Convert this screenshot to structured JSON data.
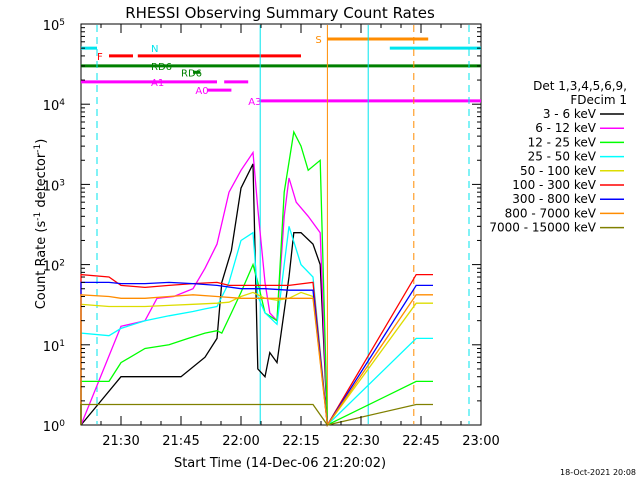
{
  "chart_data": {
    "type": "line",
    "title": "RHESSI Observing Summary Count Rates",
    "xlabel": "Start Time (14-Dec-06 21:20:02)",
    "ylabel_main": "Count Rate (s",
    "ylabel_sup1": "-1",
    "ylabel_mid": " detector",
    "ylabel_sup2": "-1",
    "ylabel_end": ")",
    "y_scale": "log",
    "ylim": [
      1,
      100000
    ],
    "xlim": [
      "21:20",
      "23:00"
    ],
    "x_ticks": [
      "21:30",
      "21:45",
      "22:00",
      "22:15",
      "22:30",
      "22:45",
      "23:00"
    ],
    "y_ticks": [
      {
        "value": 1,
        "base": "10",
        "exp": "0"
      },
      {
        "value": 10,
        "base": "10",
        "exp": "1"
      },
      {
        "value": 100,
        "base": "10",
        "exp": "2"
      },
      {
        "value": 1000,
        "base": "10",
        "exp": "3"
      },
      {
        "value": 10000,
        "base": "10",
        "exp": "4"
      },
      {
        "value": 100000,
        "base": "10",
        "exp": "5"
      }
    ],
    "legend_header": [
      "Det 1,3,4,5,6,9,",
      "FDecim 1"
    ],
    "legend_placement": "right",
    "series": [
      {
        "name": "3 - 6 keV",
        "color": "#000000",
        "points": [
          [
            21.0,
            0
          ],
          [
            21.5,
            4
          ],
          [
            21.75,
            4
          ],
          [
            21.85,
            7
          ],
          [
            21.9,
            12
          ],
          [
            21.92,
            60
          ],
          [
            21.96,
            150
          ],
          [
            22.0,
            900
          ],
          [
            22.05,
            1800
          ],
          [
            22.07,
            5
          ],
          [
            22.1,
            4
          ],
          [
            22.12,
            8
          ],
          [
            22.15,
            6
          ],
          [
            22.2,
            70
          ],
          [
            22.22,
            250
          ],
          [
            22.25,
            250
          ],
          [
            22.3,
            180
          ],
          [
            22.33,
            100
          ],
          [
            22.36,
            0
          ]
        ]
      },
      {
        "name": "6 - 12 keV",
        "color": "#ff00ff",
        "points": [
          [
            21.0,
            0
          ],
          [
            21.5,
            17
          ],
          [
            21.6,
            20
          ],
          [
            21.65,
            38
          ],
          [
            21.72,
            40
          ],
          [
            21.8,
            50
          ],
          [
            21.85,
            90
          ],
          [
            21.9,
            180
          ],
          [
            21.95,
            800
          ],
          [
            22.0,
            1500
          ],
          [
            22.05,
            2500
          ],
          [
            22.07,
            500
          ],
          [
            22.1,
            60
          ],
          [
            22.12,
            25
          ],
          [
            22.15,
            20
          ],
          [
            22.18,
            400
          ],
          [
            22.2,
            1200
          ],
          [
            22.23,
            600
          ],
          [
            22.28,
            400
          ],
          [
            22.33,
            250
          ],
          [
            22.36,
            0
          ]
        ]
      },
      {
        "name": "12 - 25 keV",
        "color": "#00ff00",
        "points": [
          [
            21.0,
            0
          ],
          [
            21.2,
            3.5
          ],
          [
            21.45,
            3.5
          ],
          [
            21.5,
            6
          ],
          [
            21.6,
            9
          ],
          [
            21.7,
            10
          ],
          [
            21.78,
            12
          ],
          [
            21.85,
            14
          ],
          [
            21.9,
            15
          ],
          [
            21.92,
            14
          ],
          [
            21.96,
            25
          ],
          [
            22.0,
            45
          ],
          [
            22.05,
            100
          ],
          [
            22.07,
            60
          ],
          [
            22.1,
            25
          ],
          [
            22.15,
            20
          ],
          [
            22.18,
            800
          ],
          [
            22.22,
            4500
          ],
          [
            22.25,
            3000
          ],
          [
            22.28,
            1500
          ],
          [
            22.33,
            2000
          ],
          [
            22.36,
            0
          ],
          [
            22.73,
            3.5
          ],
          [
            22.8,
            3.5
          ]
        ]
      },
      {
        "name": "25 - 50 keV",
        "color": "#00ffff",
        "points": [
          [
            21.0,
            0
          ],
          [
            21.2,
            14
          ],
          [
            21.45,
            13
          ],
          [
            21.5,
            16
          ],
          [
            21.6,
            20
          ],
          [
            21.7,
            23
          ],
          [
            21.8,
            26
          ],
          [
            21.85,
            28
          ],
          [
            21.9,
            30
          ],
          [
            21.95,
            60
          ],
          [
            22.0,
            200
          ],
          [
            22.05,
            250
          ],
          [
            22.07,
            40
          ],
          [
            22.1,
            25
          ],
          [
            22.15,
            18
          ],
          [
            22.18,
            100
          ],
          [
            22.2,
            300
          ],
          [
            22.25,
            100
          ],
          [
            22.3,
            70
          ],
          [
            22.36,
            0
          ],
          [
            22.73,
            12
          ],
          [
            22.8,
            12
          ]
        ]
      },
      {
        "name": "50 - 100 keV",
        "color": "#dddd00",
        "points": [
          [
            21.0,
            0
          ],
          [
            21.2,
            32
          ],
          [
            21.45,
            30
          ],
          [
            21.5,
            30
          ],
          [
            21.6,
            30
          ],
          [
            21.7,
            31
          ],
          [
            21.8,
            32
          ],
          [
            21.9,
            33
          ],
          [
            21.95,
            34
          ],
          [
            22.0,
            40
          ],
          [
            22.05,
            45
          ],
          [
            22.1,
            38
          ],
          [
            22.15,
            36
          ],
          [
            22.2,
            38
          ],
          [
            22.25,
            45
          ],
          [
            22.3,
            40
          ],
          [
            22.36,
            0
          ],
          [
            22.73,
            33
          ],
          [
            22.8,
            33
          ]
        ]
      },
      {
        "name": "100 - 300 keV",
        "color": "#ff0000",
        "points": [
          [
            21.0,
            0
          ],
          [
            21.2,
            75
          ],
          [
            21.45,
            70
          ],
          [
            21.5,
            55
          ],
          [
            21.6,
            52
          ],
          [
            21.7,
            55
          ],
          [
            21.8,
            58
          ],
          [
            21.9,
            60
          ],
          [
            21.95,
            55
          ],
          [
            22.0,
            55
          ],
          [
            22.1,
            55
          ],
          [
            22.2,
            55
          ],
          [
            22.3,
            60
          ],
          [
            22.36,
            0
          ],
          [
            22.73,
            75
          ],
          [
            22.8,
            75
          ]
        ]
      },
      {
        "name": "300 - 800 keV",
        "color": "#0000ff",
        "points": [
          [
            21.0,
            0
          ],
          [
            21.2,
            60
          ],
          [
            21.45,
            60
          ],
          [
            21.5,
            58
          ],
          [
            21.6,
            58
          ],
          [
            21.7,
            60
          ],
          [
            21.8,
            58
          ],
          [
            21.9,
            55
          ],
          [
            22.0,
            50
          ],
          [
            22.1,
            50
          ],
          [
            22.2,
            48
          ],
          [
            22.3,
            48
          ],
          [
            22.36,
            0
          ],
          [
            22.73,
            55
          ],
          [
            22.8,
            55
          ]
        ]
      },
      {
        "name": "800 - 7000 keV",
        "color": "#ff8c00",
        "points": [
          [
            21.0,
            0
          ],
          [
            21.2,
            42
          ],
          [
            21.45,
            40
          ],
          [
            21.5,
            38
          ],
          [
            21.6,
            38
          ],
          [
            21.7,
            40
          ],
          [
            21.8,
            42
          ],
          [
            21.9,
            40
          ],
          [
            22.0,
            38
          ],
          [
            22.1,
            38
          ],
          [
            22.2,
            38
          ],
          [
            22.3,
            38
          ],
          [
            22.36,
            0
          ],
          [
            22.73,
            42
          ],
          [
            22.8,
            42
          ]
        ]
      },
      {
        "name": "7000 - 15000 keV",
        "color": "#808000",
        "points": [
          [
            21.0,
            0
          ],
          [
            21.2,
            1.8
          ],
          [
            21.45,
            1.8
          ],
          [
            21.5,
            1.8
          ],
          [
            21.7,
            1.8
          ],
          [
            21.9,
            1.8
          ],
          [
            22.1,
            1.8
          ],
          [
            22.3,
            1.8
          ],
          [
            22.36,
            0
          ],
          [
            22.73,
            1.8
          ],
          [
            22.8,
            1.8
          ]
        ]
      }
    ],
    "flags": [
      {
        "label": "N",
        "color": "#00e5ee",
        "y": 50000,
        "segments": [
          [
            21.0,
            21.4
          ],
          [
            22.62,
            23.0
          ]
        ]
      },
      {
        "label": "F",
        "color": "#ff0000",
        "y": 40000,
        "segments": [
          [
            21.45,
            21.55
          ],
          [
            21.57,
            22.25
          ]
        ]
      },
      {
        "label": "S",
        "color": "#ff8c00",
        "y": 65000,
        "segments": [
          [
            22.36,
            22.78
          ]
        ]
      },
      {
        "label": "RD6",
        "color": "#008000",
        "y": 30000,
        "segments": [
          [
            21.0,
            23.0
          ]
        ]
      },
      {
        "label": "RD6",
        "color": "#008000",
        "y": 25000,
        "segments": [
          [
            21.8,
            21.83
          ]
        ]
      },
      {
        "label": "A1",
        "color": "#ff00ff",
        "y": 19000,
        "segments": [
          [
            21.0,
            21.9
          ],
          [
            21.93,
            22.03
          ]
        ]
      },
      {
        "label": "A0",
        "color": "#ff00ff",
        "y": 15000,
        "segments": [
          [
            21.86,
            21.96
          ]
        ]
      },
      {
        "label": "A3",
        "color": "#ff00ff",
        "y": 11000,
        "segments": [
          [
            22.08,
            23.0
          ]
        ]
      }
    ],
    "vlines": [
      {
        "x": 21.4,
        "color": "#00e5ee",
        "style": "dashed"
      },
      {
        "x": 22.08,
        "color": "#00e5ee",
        "style": "solid"
      },
      {
        "x": 22.36,
        "color": "#ff8c00",
        "style": "solid"
      },
      {
        "x": 22.53,
        "color": "#00e5ee",
        "style": "solid"
      },
      {
        "x": 22.72,
        "color": "#ff8c00",
        "style": "dashed"
      },
      {
        "x": 22.95,
        "color": "#00e5ee",
        "style": "dashed"
      }
    ],
    "footer_date": "18-Oct-2021 20:08"
  }
}
